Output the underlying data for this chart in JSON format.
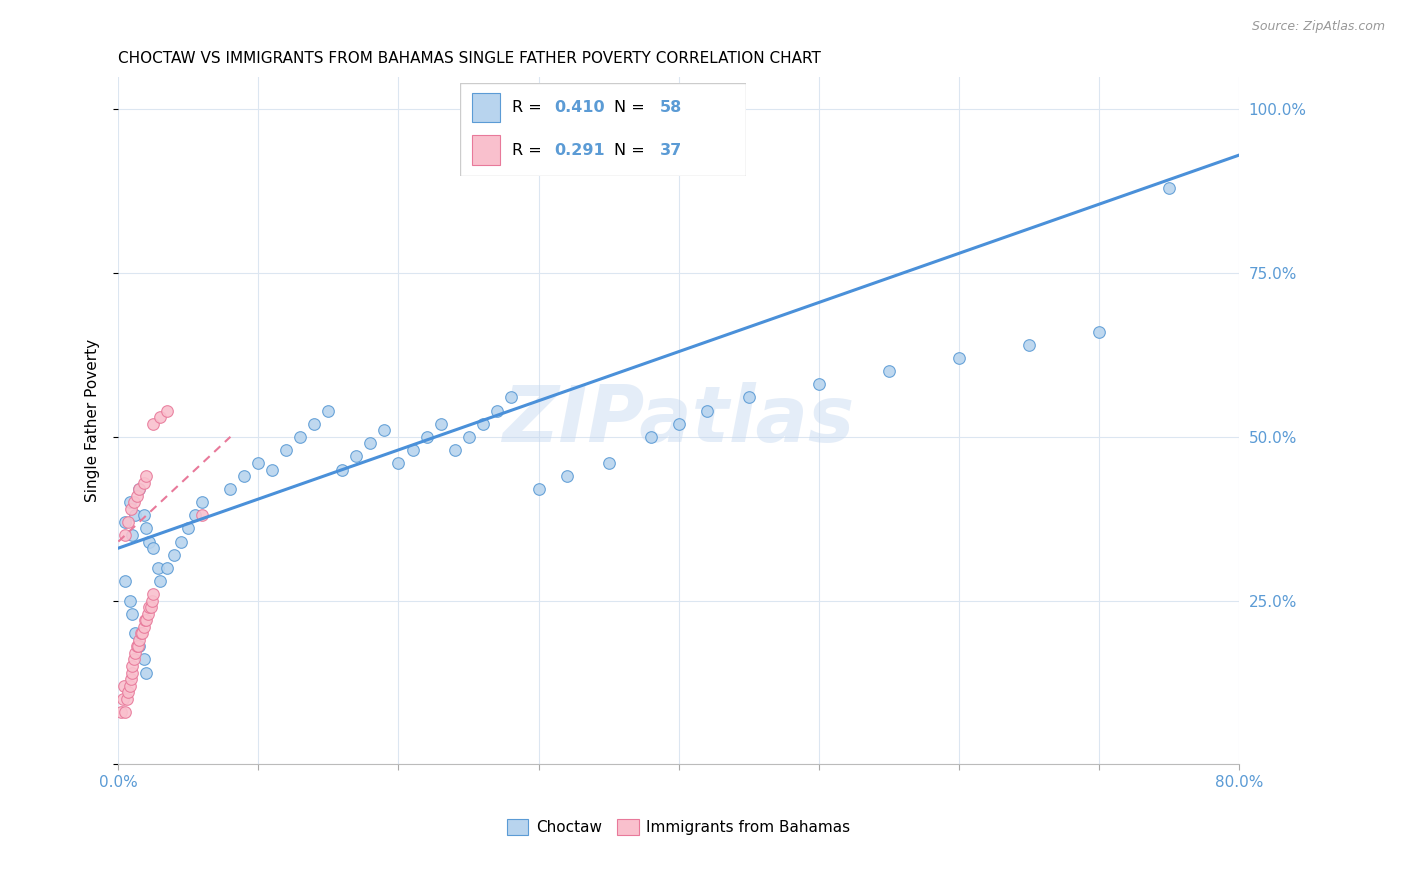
{
  "title": "CHOCTAW VS IMMIGRANTS FROM BAHAMAS SINGLE FATHER POVERTY CORRELATION CHART",
  "source": "Source: ZipAtlas.com",
  "ylabel": "Single Father Poverty",
  "legend1_label": "Choctaw",
  "legend2_label": "Immigrants from Bahamas",
  "r1": 0.41,
  "n1": 58,
  "r2": 0.291,
  "n2": 37,
  "color_choctaw_fill": "#b8d4ee",
  "color_choctaw_edge": "#5b9bd5",
  "color_bahamas_fill": "#f9c0cd",
  "color_bahamas_edge": "#e8799a",
  "color_line_choctaw": "#4a90d9",
  "color_line_bahamas": "#e8799a",
  "watermark": "ZIPatlas",
  "choctaw_x": [
    0.005,
    0.008,
    0.01,
    0.012,
    0.015,
    0.018,
    0.02,
    0.022,
    0.025,
    0.028,
    0.005,
    0.008,
    0.01,
    0.012,
    0.015,
    0.018,
    0.02,
    0.03,
    0.035,
    0.04,
    0.045,
    0.05,
    0.055,
    0.06,
    0.08,
    0.09,
    0.1,
    0.11,
    0.12,
    0.13,
    0.14,
    0.15,
    0.16,
    0.17,
    0.18,
    0.19,
    0.2,
    0.21,
    0.22,
    0.23,
    0.24,
    0.25,
    0.26,
    0.27,
    0.28,
    0.3,
    0.32,
    0.35,
    0.38,
    0.4,
    0.42,
    0.45,
    0.5,
    0.55,
    0.6,
    0.65,
    0.7,
    0.75
  ],
  "choctaw_y": [
    0.37,
    0.4,
    0.35,
    0.38,
    0.42,
    0.38,
    0.36,
    0.34,
    0.33,
    0.3,
    0.28,
    0.25,
    0.23,
    0.2,
    0.18,
    0.16,
    0.14,
    0.28,
    0.3,
    0.32,
    0.34,
    0.36,
    0.38,
    0.4,
    0.42,
    0.44,
    0.46,
    0.45,
    0.48,
    0.5,
    0.52,
    0.54,
    0.45,
    0.47,
    0.49,
    0.51,
    0.46,
    0.48,
    0.5,
    0.52,
    0.48,
    0.5,
    0.52,
    0.54,
    0.56,
    0.42,
    0.44,
    0.46,
    0.5,
    0.52,
    0.54,
    0.56,
    0.58,
    0.6,
    0.62,
    0.64,
    0.66,
    0.88
  ],
  "bahamas_x": [
    0.002,
    0.003,
    0.004,
    0.005,
    0.006,
    0.007,
    0.008,
    0.009,
    0.01,
    0.01,
    0.011,
    0.012,
    0.013,
    0.014,
    0.015,
    0.016,
    0.017,
    0.018,
    0.019,
    0.02,
    0.021,
    0.022,
    0.023,
    0.024,
    0.025,
    0.005,
    0.007,
    0.009,
    0.011,
    0.013,
    0.015,
    0.018,
    0.02,
    0.025,
    0.03,
    0.035,
    0.06
  ],
  "bahamas_y": [
    0.08,
    0.1,
    0.12,
    0.08,
    0.1,
    0.11,
    0.12,
    0.13,
    0.14,
    0.15,
    0.16,
    0.17,
    0.18,
    0.18,
    0.19,
    0.2,
    0.2,
    0.21,
    0.22,
    0.22,
    0.23,
    0.24,
    0.24,
    0.25,
    0.26,
    0.35,
    0.37,
    0.39,
    0.4,
    0.41,
    0.42,
    0.43,
    0.44,
    0.52,
    0.53,
    0.54,
    0.38
  ],
  "line1_x": [
    0.0,
    0.8
  ],
  "line1_y": [
    0.33,
    0.93
  ],
  "line2_x": [
    0.0,
    0.08
  ],
  "line2_y": [
    0.34,
    0.5
  ],
  "xlim": [
    0.0,
    0.8
  ],
  "ylim": [
    0.0,
    1.05
  ],
  "xticks": [
    0.0,
    0.1,
    0.2,
    0.3,
    0.4,
    0.5,
    0.6,
    0.7,
    0.8
  ],
  "yticks": [
    0.0,
    0.25,
    0.5,
    0.75,
    1.0
  ],
  "ytick_labels_right": [
    "",
    "25.0%",
    "50.0%",
    "75.0%",
    "100.0%"
  ],
  "tick_color": "#5b9bd5",
  "grid_color": "#dce6f1",
  "background_color": "#ffffff",
  "title_fontsize": 11,
  "axis_fontsize": 11
}
